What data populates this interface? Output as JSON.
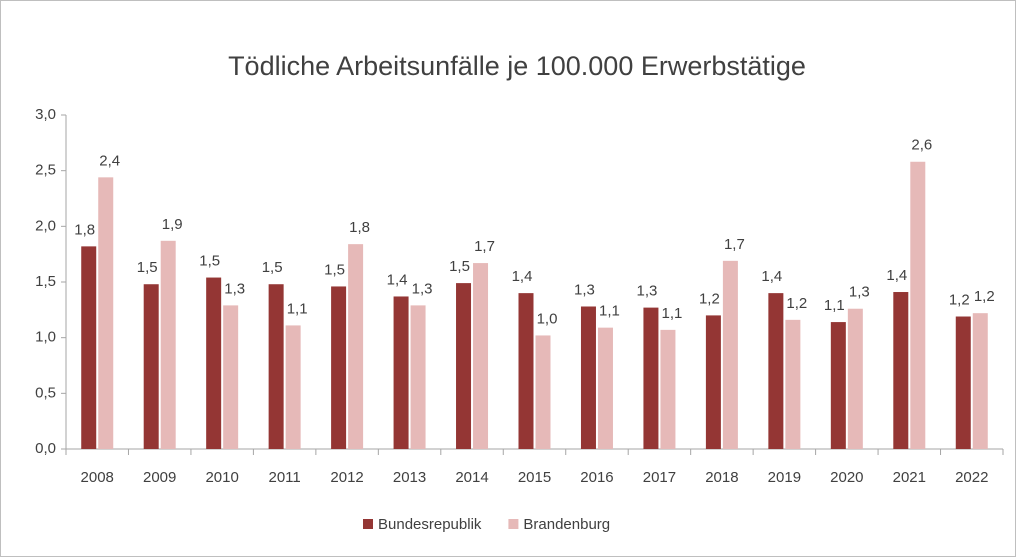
{
  "chart_data": {
    "type": "bar",
    "title": "Tödliche Arbeitsunfälle je 100.000 Erwerbstätige",
    "categories": [
      "2008",
      "2009",
      "2010",
      "2011",
      "2012",
      "2013",
      "2014",
      "2015",
      "2016",
      "2017",
      "2018",
      "2019",
      "2020",
      "2021",
      "2022"
    ],
    "series": [
      {
        "name": "Bundesrepublik",
        "color": "#943634",
        "values": [
          1.82,
          1.48,
          1.54,
          1.48,
          1.46,
          1.37,
          1.49,
          1.4,
          1.28,
          1.27,
          1.2,
          1.4,
          1.14,
          1.41,
          1.19
        ],
        "value_labels": [
          "1,8",
          "1,5",
          "1,5",
          "1,5",
          "1,5",
          "1,4",
          "1,5",
          "1,4",
          "1,3",
          "1,3",
          "1,2",
          "1,4",
          "1,1",
          "1,4",
          "1,2"
        ]
      },
      {
        "name": "Brandenburg",
        "color": "#e6b9b8",
        "values": [
          2.44,
          1.87,
          1.29,
          1.11,
          1.84,
          1.29,
          1.67,
          1.02,
          1.09,
          1.07,
          1.69,
          1.16,
          1.26,
          2.58,
          1.22
        ],
        "value_labels": [
          "2,4",
          "1,9",
          "1,3",
          "1,1",
          "1,8",
          "1,3",
          "1,7",
          "1,0",
          "1,1",
          "1,1",
          "1,7",
          "1,2",
          "1,3",
          "2,6",
          "1,2"
        ]
      }
    ],
    "ylim": [
      0,
      3
    ],
    "yticks": [
      {
        "value": 0,
        "label": "0,0"
      },
      {
        "value": 0.5,
        "label": "0,5"
      },
      {
        "value": 1,
        "label": "1,0"
      },
      {
        "value": 1.5,
        "label": "1,5"
      },
      {
        "value": 2,
        "label": "2,0"
      },
      {
        "value": 2.5,
        "label": "2,5"
      },
      {
        "value": 3,
        "label": "3,0"
      }
    ],
    "grid": false,
    "legend": "bottom"
  }
}
